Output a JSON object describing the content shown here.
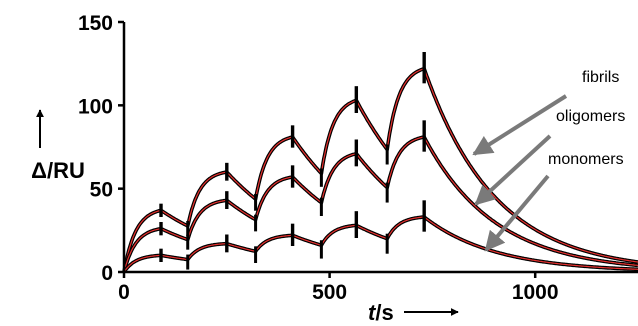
{
  "chart_data": {
    "type": "line",
    "title": "",
    "xlabel_italic": "t",
    "xlabel_rest": "/s",
    "ylabel": "Δ/RU",
    "xlim": [
      0,
      1250
    ],
    "ylim": [
      0,
      150
    ],
    "x_ticks": [
      0,
      500,
      1000
    ],
    "x_tick_labels": [
      "0",
      "500",
      "1000"
    ],
    "y_ticks": [
      0,
      50,
      100,
      150
    ],
    "y_tick_labels": [
      "0",
      "50",
      "100",
      "150"
    ],
    "grid": false,
    "legend": "none",
    "colors": {
      "fit": "#e8312f",
      "data": "#000000",
      "arrow": "#7a7a7a",
      "axis": "#000000"
    },
    "injections": [
      {
        "start": 0,
        "end": 90
      },
      {
        "start": 155,
        "end": 250
      },
      {
        "start": 320,
        "end": 410
      },
      {
        "start": 480,
        "end": 565
      },
      {
        "start": 640,
        "end": 730
      }
    ],
    "series": [
      {
        "name": "fibrils",
        "values": [
          37,
          60,
          81,
          103,
          122
        ]
      },
      {
        "name": "oligomers",
        "values": [
          26,
          43,
          57,
          71,
          81
        ]
      },
      {
        "name": "monomers",
        "values": [
          10,
          17,
          22,
          28,
          33
        ]
      }
    ],
    "annotations": [
      {
        "text": "fibrils"
      },
      {
        "text": "oligomers"
      },
      {
        "text": "monomers"
      }
    ]
  }
}
